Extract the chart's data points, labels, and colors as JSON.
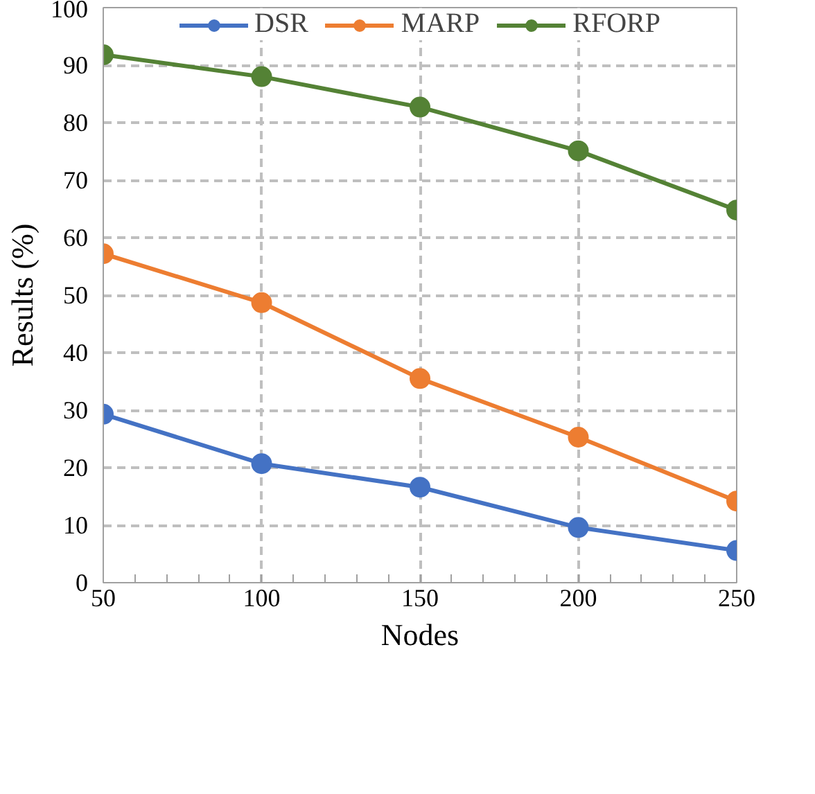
{
  "chart_data": {
    "type": "line",
    "xlabel": "Nodes",
    "ylabel": "Results (%)",
    "x": [
      50,
      100,
      150,
      200,
      250
    ],
    "series": [
      {
        "name": "DSR",
        "color": "#4472c4",
        "values": [
          29.3,
          20.7,
          16.6,
          9.6,
          5.6
        ]
      },
      {
        "name": "MARP",
        "color": "#ed7d31",
        "values": [
          57.2,
          48.7,
          35.5,
          25.3,
          14.2
        ]
      },
      {
        "name": "RFORP",
        "color": "#548235",
        "values": [
          91.8,
          88.0,
          82.7,
          75.1,
          64.8
        ]
      }
    ],
    "xlim": [
      50,
      250
    ],
    "xticks": [
      50,
      100,
      150,
      200,
      250
    ],
    "ylim": [
      0,
      100
    ],
    "yticks": [
      0,
      10,
      20,
      30,
      40,
      50,
      60,
      70,
      80,
      90,
      100
    ],
    "grid": true,
    "legend": "top",
    "marker": "circle",
    "line_style": "solid"
  }
}
